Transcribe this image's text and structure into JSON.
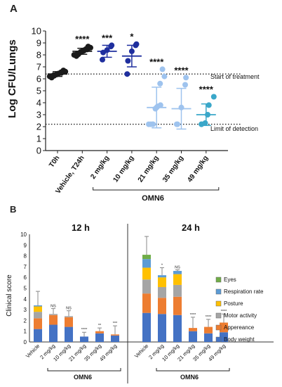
{
  "panel_a": {
    "label": "A",
    "ylabel": "Log CFU/Lungs",
    "group_label": "OMN6",
    "threshold_start": "Start of treatment",
    "threshold_lod": "Limit of detection"
  },
  "panel_b": {
    "label": "B",
    "left_title": "12 h",
    "right_title": "24 h",
    "ylabel": "Clinical score",
    "group_label_left": "OMN6",
    "group_label_right": "OMN6"
  },
  "colors": {
    "black": "#1a1a1a",
    "dark_blue": "#1f2f9e",
    "light_blue": "#9ec3ee",
    "teal": "#3aa7c9",
    "body_weight": "#4472c4",
    "appearance": "#ed7d31",
    "motor_activity": "#a5a5a5",
    "posture": "#ffc000",
    "respiration_rate": "#5b9bd5",
    "eyes": "#70ad47"
  },
  "chart_data": [
    {
      "type": "scatter",
      "categories": [
        "T0h",
        "Vehicle, T24h",
        "2 mg/kg",
        "10 mg/kg",
        "21 mg/kg",
        "35 mg/kg",
        "49 mg/kg"
      ],
      "ylim": [
        0,
        10
      ],
      "yticks": [
        0,
        1,
        2,
        3,
        4,
        5,
        6,
        7,
        8,
        9,
        10
      ],
      "reference_lines": [
        {
          "y": 6.4,
          "label": "Start of treatment"
        },
        {
          "y": 2.2,
          "label": "Limit of detection"
        }
      ],
      "groups": [
        {
          "category": "T0h",
          "color": "black",
          "mean": 6.4,
          "sd": 0.2,
          "significance": "",
          "points": [
            6.1,
            6.2,
            6.25,
            6.3,
            6.35,
            6.4,
            6.45,
            6.5,
            6.55,
            6.6,
            6.7
          ]
        },
        {
          "category": "Vehicle, T24h",
          "color": "black",
          "mean": 8.3,
          "sd": 0.25,
          "significance": "****",
          "points": [
            7.9,
            8.0,
            8.05,
            8.1,
            8.2,
            8.25,
            8.3,
            8.35,
            8.4,
            8.45,
            8.5,
            8.6,
            8.7
          ]
        },
        {
          "category": "2 mg/kg",
          "color": "dark_blue",
          "mean": 8.3,
          "sd": 0.5,
          "significance": "***",
          "points": [
            7.6,
            8.2,
            8.4,
            8.7,
            8.8
          ]
        },
        {
          "category": "10 mg/kg",
          "color": "dark_blue",
          "mean": 7.9,
          "sd": 0.9,
          "significance": "*",
          "points": [
            6.4,
            7.5,
            8.3,
            8.8,
            8.9
          ]
        },
        {
          "category": "21 mg/kg",
          "color": "light_blue",
          "mean": 3.6,
          "sd": 1.7,
          "significance": "****",
          "points": [
            2.2,
            2.2,
            2.2,
            2.2,
            3.5,
            3.6,
            3.7,
            3.8,
            5.6,
            6.2,
            6.8
          ]
        },
        {
          "category": "35 mg/kg",
          "color": "light_blue",
          "mean": 3.5,
          "sd": 1.7,
          "significance": "****",
          "points": [
            2.2,
            2.2,
            3.6,
            5.5,
            6.1
          ]
        },
        {
          "category": "49 mg/kg",
          "color": "teal",
          "mean": 3.0,
          "sd": 0.9,
          "significance": "****",
          "points": [
            2.2,
            2.2,
            2.3,
            3.0,
            3.8,
            4.5
          ]
        }
      ]
    },
    {
      "type": "bar",
      "stacked": true,
      "ylim": [
        0,
        10
      ],
      "yticks": [
        0,
        1,
        2,
        3,
        4,
        5,
        6,
        7,
        8,
        9,
        10
      ],
      "categories": [
        "Vehicle",
        "2 mg/kg",
        "10 mg/kg",
        "21 mg/kg",
        "35 mg/kg",
        "49 mg/kg",
        "Vehicle",
        "2 mg/kg",
        "10 mg/kg",
        "21 mg/kg",
        "35 mg/kg",
        "49 mg/kg"
      ],
      "timepoint": [
        "12 h",
        "12 h",
        "12 h",
        "12 h",
        "12 h",
        "12 h",
        "24 h",
        "24 h",
        "24 h",
        "24 h",
        "24 h",
        "24 h"
      ],
      "legend": [
        "Eyes",
        "Respiration rate",
        "Posture",
        "Motor activity",
        "Appereance",
        "Body weight"
      ],
      "legend_position": "right",
      "significance": [
        "",
        "NS",
        "NS",
        "****",
        "**",
        "***",
        "",
        "*",
        "NS",
        "****",
        "****",
        "****"
      ],
      "error_top": [
        4.7,
        3.1,
        2.9,
        0.9,
        1.3,
        1.5,
        9.8,
        6.9,
        6.7,
        2.3,
        2.1,
        2.6
      ],
      "series": [
        {
          "name": "Body weight",
          "color": "body_weight",
          "values": [
            1.2,
            1.6,
            1.4,
            0.5,
            0.8,
            0.6,
            2.7,
            2.6,
            2.5,
            1.0,
            0.8,
            0.9
          ]
        },
        {
          "name": "Appereance",
          "color": "appearance",
          "values": [
            1.0,
            0.9,
            0.9,
            0.0,
            0.2,
            0.1,
            1.8,
            1.5,
            1.7,
            0.3,
            0.6,
            0.9
          ]
        },
        {
          "name": "Motor activity",
          "color": "motor_activity",
          "values": [
            0.6,
            0.1,
            0.1,
            0.0,
            0.0,
            0.0,
            1.3,
            1.0,
            1.1,
            0.0,
            0.0,
            0.0
          ]
        },
        {
          "name": "Posture",
          "color": "posture",
          "values": [
            0.5,
            0.0,
            0.0,
            0.0,
            0.0,
            0.0,
            1.1,
            0.9,
            1.0,
            0.0,
            0.0,
            0.0
          ]
        },
        {
          "name": "Respiration rate",
          "color": "respiration_rate",
          "values": [
            0.1,
            0.0,
            0.0,
            0.0,
            0.0,
            0.0,
            0.8,
            0.2,
            0.3,
            0.0,
            0.0,
            0.0
          ]
        },
        {
          "name": "Eyes",
          "color": "eyes",
          "values": [
            0.0,
            0.0,
            0.0,
            0.0,
            0.0,
            0.0,
            0.4,
            0.0,
            0.0,
            0.0,
            0.0,
            0.0
          ]
        }
      ]
    }
  ]
}
